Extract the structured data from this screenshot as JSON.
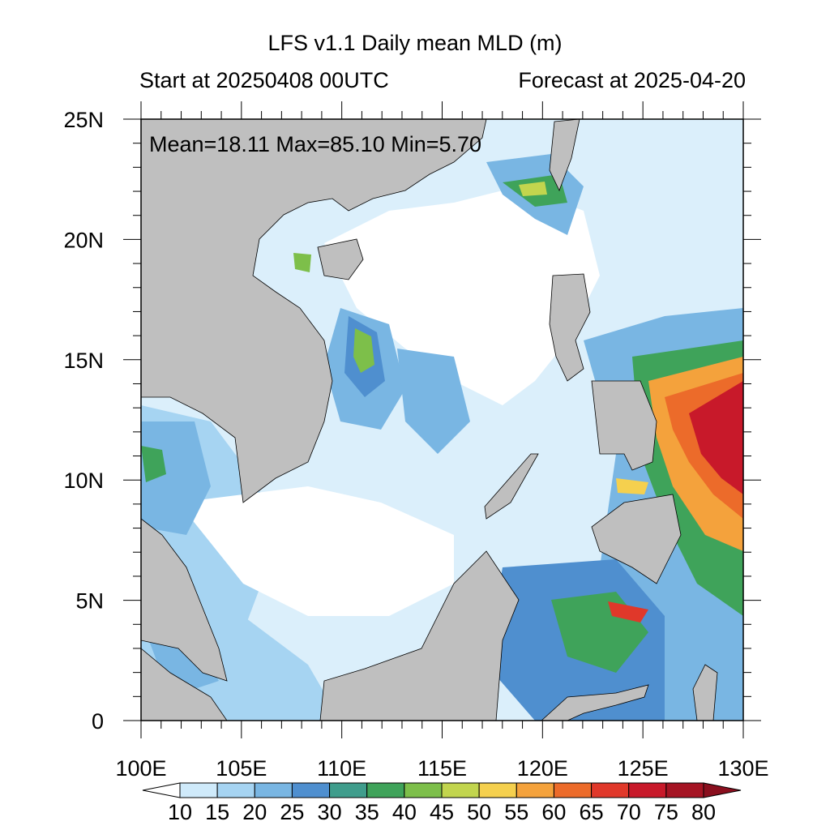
{
  "title": "LFS v1.1 Daily mean MLD (m)",
  "start_label": "Start at 20250408 00UTC",
  "forecast_label": "Forecast at 2025-04-20",
  "stats": {
    "mean": "18.11",
    "max": "85.10",
    "min": "5.70"
  },
  "stats_text": "Mean=18.11  Max=85.10  Min=5.70",
  "map_extent": {
    "lon": [
      100,
      130
    ],
    "lat": [
      0,
      25
    ]
  },
  "lat_ticks": [
    "0",
    "5N",
    "10N",
    "15N",
    "20N",
    "25N"
  ],
  "lon_ticks": [
    "100E",
    "105E",
    "110E",
    "115E",
    "120E",
    "125E",
    "130E"
  ],
  "colorbar": {
    "levels": [
      "10",
      "15",
      "20",
      "25",
      "30",
      "35",
      "40",
      "45",
      "50",
      "55",
      "60",
      "65",
      "70",
      "75",
      "80"
    ],
    "colors": [
      "#ffffff",
      "#cfeafa",
      "#a6d4f2",
      "#79b6e3",
      "#4f8fcf",
      "#3f9d8c",
      "#3fa35a",
      "#7dbf4a",
      "#c2d54e",
      "#f5d04e",
      "#f4a23c",
      "#ec6b2a",
      "#e0382a",
      "#c8192a",
      "#a51423",
      "#8a0f1e"
    ]
  },
  "colors": {
    "land": "#bfbfbf",
    "ocean_min": "#ffffff"
  }
}
